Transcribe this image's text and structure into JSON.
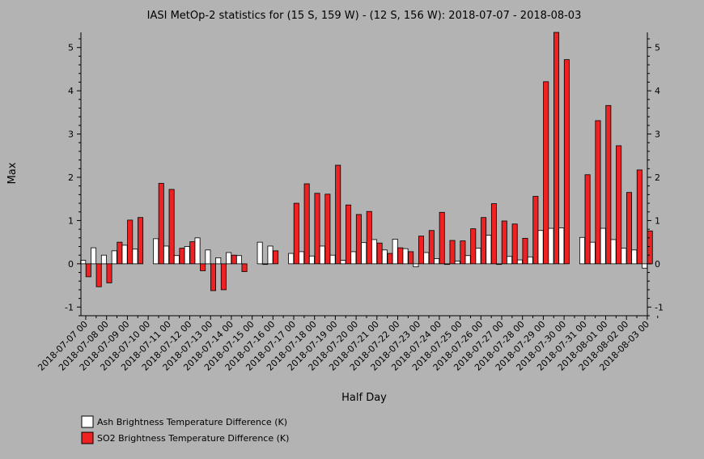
{
  "chart_data": {
    "type": "bar",
    "title": "IASI MetOp-2 statistics for (15 S, 159 W) - (12 S, 156 W): 2018-07-07 - 2018-08-03",
    "xlabel": "Half Day",
    "ylabel": "Max",
    "ylim": [
      -1.2,
      5.35
    ],
    "yticks": [
      -1,
      0,
      1,
      2,
      3,
      4,
      5
    ],
    "grid": false,
    "legend_position": "bottom-left",
    "tick_labels": [
      "2018-07-07 00",
      "2018-07-08 00",
      "2018-07-09 00",
      "2018-07-10 00",
      "2018-07-11 00",
      "2018-07-12 00",
      "2018-07-13 00",
      "2018-07-14 00",
      "2018-07-15 00",
      "2018-07-16 00",
      "2018-07-17 00",
      "2018-07-18 00",
      "2018-07-19 00",
      "2018-07-20 00",
      "2018-07-21 00",
      "2018-07-22 00",
      "2018-07-23 00",
      "2018-07-24 00",
      "2018-07-25 00",
      "2018-07-26 00",
      "2018-07-27 00",
      "2018-07-28 00",
      "2018-07-29 00",
      "2018-07-30 00",
      "2018-07-31 00",
      "2018-08-01 00",
      "2018-08-02 00",
      "2018-08-03 00"
    ],
    "series": [
      {
        "name": "Ash Brightness Temperature Difference (K)",
        "color": "#ffffff",
        "values": [
          0.08,
          0.37,
          0.2,
          0.3,
          0.43,
          0.34,
          null,
          0.58,
          0.41,
          0.19,
          0.4,
          0.6,
          0.32,
          0.14,
          0.26,
          0.19,
          null,
          0.5,
          0.41,
          null,
          0.24,
          0.28,
          0.18,
          0.41,
          0.2,
          0.08,
          0.28,
          0.49,
          0.56,
          0.32,
          0.57,
          0.35,
          -0.07,
          0.26,
          0.12,
          0.0,
          0.06,
          0.19,
          0.36,
          0.66,
          0.0,
          0.17,
          0.09,
          0.16,
          0.77,
          0.82,
          0.83,
          null,
          0.61,
          0.5,
          0.82,
          0.56,
          0.36,
          0.32,
          -0.1
        ]
      },
      {
        "name": "SO2 Brightness Temperature Difference (K)",
        "color": "#ee2222",
        "values": [
          -0.3,
          -0.53,
          -0.44,
          0.5,
          1.01,
          1.07,
          null,
          1.86,
          1.72,
          0.36,
          0.51,
          -0.16,
          -0.62,
          -0.6,
          0.2,
          -0.18,
          null,
          0.0,
          0.3,
          null,
          1.4,
          1.85,
          1.63,
          1.61,
          2.28,
          1.36,
          1.14,
          1.21,
          0.48,
          0.24,
          0.37,
          0.28,
          0.64,
          0.77,
          1.19,
          0.54,
          0.53,
          0.81,
          1.07,
          1.39,
          0.99,
          0.92,
          0.59,
          1.56,
          4.21,
          5.35,
          4.72,
          null,
          2.06,
          3.31,
          3.66,
          2.73,
          1.65,
          2.17,
          0.76
        ]
      }
    ]
  }
}
